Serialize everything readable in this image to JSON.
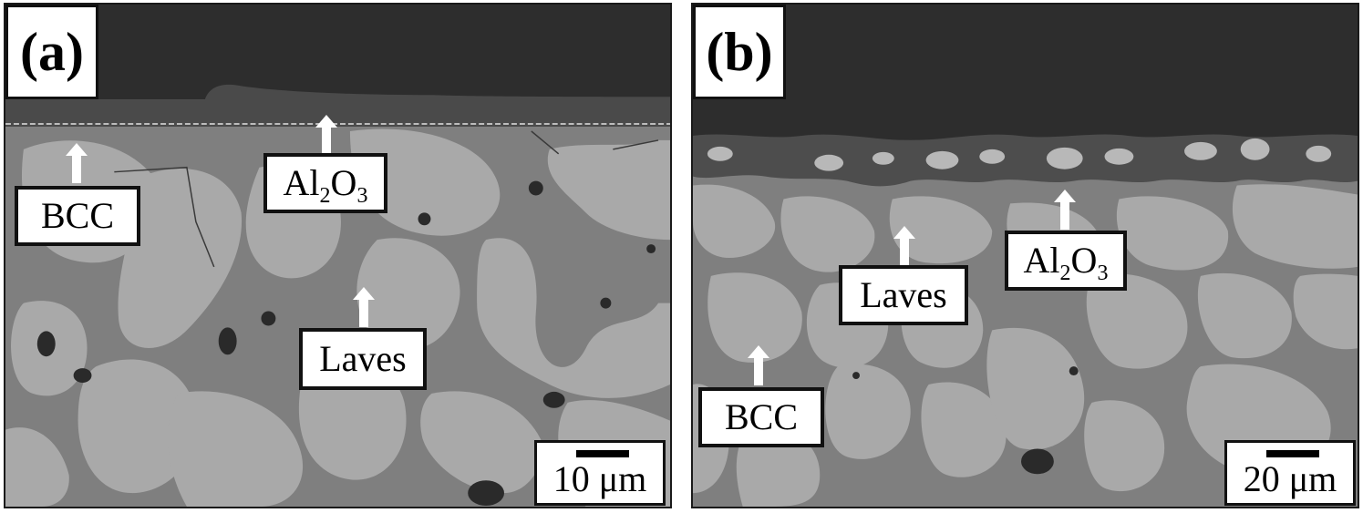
{
  "panels": [
    {
      "letter": "(a)",
      "labels": {
        "bcc": "BCC",
        "al2o3_prefix": "Al",
        "al2o3_sub1": "2",
        "al2o3_mid": "O",
        "al2o3_sub2": "3",
        "laves": "Laves"
      },
      "scale_bar": "10 μm"
    },
    {
      "letter": "(b)",
      "labels": {
        "bcc": "BCC",
        "al2o3_prefix": "Al",
        "al2o3_sub1": "2",
        "al2o3_mid": "O",
        "al2o3_sub2": "3",
        "laves": "Laves"
      },
      "scale_bar": "20 μm"
    }
  ],
  "colors": {
    "background_dark": "#2d2d2d",
    "oxide_layer": "#4a4a4a",
    "bcc_matrix": "#7f7f7f",
    "laves_phase": "#a9a9a9",
    "pores": "#2a2a2a"
  }
}
